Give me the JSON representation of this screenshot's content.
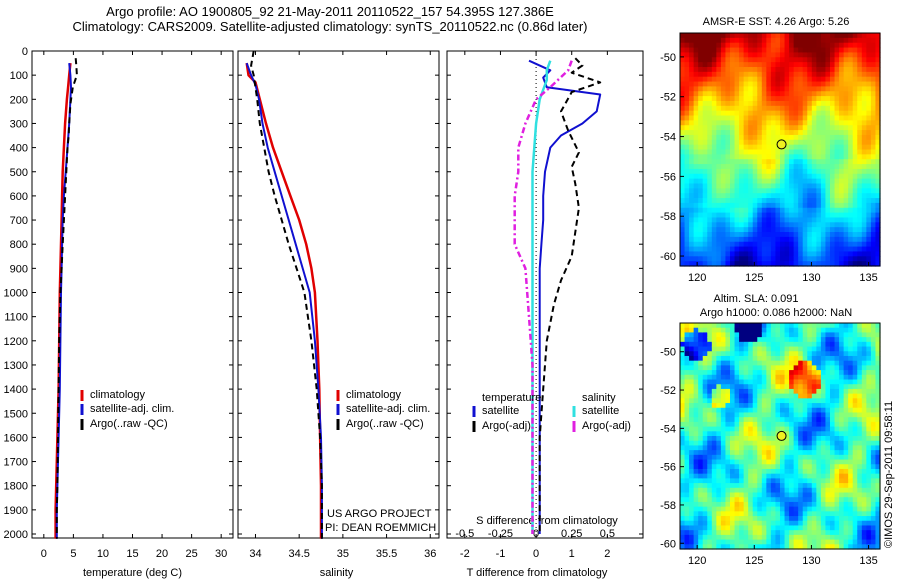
{
  "header": {
    "title_line1": "Argo profile: AO 1900805_92 21-May-2011 20110522_157 54.395S 127.386E",
    "title_line2": "Climatology: CARS2009. Satellite-adjusted climatology: synTS_20110522.nc (0.86d later)"
  },
  "credits": {
    "project": "US ARGO PROJECT",
    "pi": "PI: DEAN ROEMMICH",
    "stamp": "©IMOS 29-Sep-2011 09:58:11"
  },
  "colors": {
    "climatology": "#e00000",
    "satellite": "#1010d0",
    "argo": "#000000",
    "salinity_satellite": "#30e0e0",
    "salinity_argo": "#e020e0"
  },
  "chart_data": [
    {
      "type": "line",
      "xlabel": "temperature (deg C)",
      "ylabel": "",
      "xlim": [
        -2,
        32
      ],
      "ylim": [
        2050,
        0
      ],
      "xticks": [
        "0",
        "5",
        "10",
        "15",
        "20",
        "25",
        "30"
      ],
      "xtick_values": [
        0,
        5,
        10,
        15,
        20,
        25,
        30
      ],
      "yticks": [
        "0",
        "100",
        "200",
        "300",
        "400",
        "500",
        "600",
        "700",
        "800",
        "900",
        "1000",
        "1100",
        "1200",
        "1300",
        "1400",
        "1500",
        "1600",
        "1700",
        "1800",
        "1900",
        "2000"
      ],
      "ytick_values": [
        0,
        100,
        200,
        300,
        400,
        500,
        600,
        700,
        800,
        900,
        1000,
        1100,
        1200,
        1300,
        1400,
        1500,
        1600,
        1700,
        1800,
        1900,
        2000
      ],
      "legend": {
        "position": "center-right",
        "entries": [
          "climatology",
          "satellite-adj. clim.",
          "Argo(..raw -QC)"
        ]
      },
      "series": [
        {
          "name": "climatology",
          "dash": "solid",
          "x": [
            4.5,
            4.3,
            4.1,
            3.9,
            3.6,
            3.4,
            3.2,
            3.1,
            3.0,
            2.9,
            2.8,
            2.7,
            2.6,
            2.5,
            2.4,
            2.3,
            2.2,
            2.1,
            2.0,
            2.0
          ],
          "y": [
            50,
            100,
            150,
            200,
            300,
            400,
            500,
            600,
            700,
            800,
            900,
            1000,
            1200,
            1400,
            1500,
            1600,
            1700,
            1800,
            1900,
            2020
          ]
        },
        {
          "name": "satellite-adj. clim.",
          "dash": "solid",
          "x": [
            4.3,
            4.5,
            4.6,
            4.5,
            4.3,
            4.0,
            3.7,
            3.4,
            3.2,
            3.1,
            3.0,
            2.9,
            2.8,
            2.7,
            2.6,
            2.5,
            2.4,
            2.3,
            2.2,
            2.2
          ],
          "y": [
            50,
            100,
            150,
            200,
            300,
            400,
            500,
            600,
            700,
            800,
            900,
            1000,
            1200,
            1400,
            1500,
            1600,
            1700,
            1800,
            1900,
            2020
          ]
        },
        {
          "name": "Argo(..raw -QC)",
          "dash": "dashed",
          "x": [
            5.4,
            5.5,
            5.6,
            4.9,
            4.5,
            4.3,
            4.2,
            4.0,
            3.8,
            3.6,
            3.4,
            3.2,
            3.0,
            2.8,
            2.6,
            2.5,
            2.4,
            2.3,
            2.2,
            2.2
          ],
          "y": [
            30,
            60,
            100,
            150,
            220,
            300,
            350,
            400,
            500,
            600,
            700,
            800,
            900,
            1000,
            1200,
            1400,
            1600,
            1800,
            1900,
            2020
          ]
        }
      ]
    },
    {
      "type": "line",
      "xlabel": "salinity",
      "ylabel": "",
      "xlim": [
        33.8,
        36.1
      ],
      "ylim": [
        2050,
        0
      ],
      "xticks": [
        "34",
        "34.5",
        "35",
        "35.5",
        "36"
      ],
      "xtick_values": [
        34,
        34.5,
        35,
        35.5,
        36
      ],
      "legend": {
        "position": "center-right",
        "entries": [
          "climatology",
          "satellite-adj. clim.",
          "Argo(..raw -QC)"
        ]
      },
      "series": [
        {
          "name": "climatology",
          "dash": "solid",
          "x": [
            33.9,
            33.92,
            34.0,
            34.05,
            34.12,
            34.2,
            34.3,
            34.4,
            34.5,
            34.58,
            34.64,
            34.68,
            34.71,
            34.73,
            34.74,
            34.75,
            34.75
          ],
          "y": [
            50,
            100,
            130,
            200,
            300,
            400,
            500,
            600,
            700,
            800,
            900,
            1000,
            1200,
            1400,
            1600,
            1800,
            2020
          ]
        },
        {
          "name": "satellite-adj. clim.",
          "dash": "solid",
          "x": [
            33.9,
            33.95,
            34.0,
            34.04,
            34.08,
            34.14,
            34.22,
            34.3,
            34.38,
            34.46,
            34.54,
            34.62,
            34.68,
            34.72,
            34.75,
            34.76,
            34.76
          ],
          "y": [
            50,
            100,
            140,
            200,
            300,
            400,
            500,
            600,
            700,
            800,
            900,
            1000,
            1200,
            1400,
            1600,
            1800,
            2020
          ]
        },
        {
          "name": "Argo(..raw -QC)",
          "dash": "dashed",
          "x": [
            33.98,
            33.95,
            33.98,
            34.02,
            34.05,
            34.1,
            34.15,
            34.22,
            34.3,
            34.38,
            34.47,
            34.56,
            34.64,
            34.7,
            34.74,
            34.76,
            34.76
          ],
          "y": [
            0,
            60,
            100,
            200,
            300,
            400,
            500,
            600,
            700,
            800,
            900,
            1000,
            1200,
            1400,
            1600,
            1800,
            2020
          ]
        }
      ]
    },
    {
      "type": "line",
      "xlabel": "T difference from climatology",
      "subxlabel": "S difference from climatology",
      "ylabel": "",
      "xlim": [
        -2.5,
        3
      ],
      "ylim": [
        2050,
        0
      ],
      "xticks": [
        "-2",
        "-1",
        "0",
        "1",
        "2"
      ],
      "xtick_values": [
        -2,
        -1,
        0,
        1,
        2
      ],
      "sxticks": [
        "-0.5",
        "-0.25",
        "0",
        "0.25",
        "0.5"
      ],
      "sxtick_values": [
        -2,
        -1,
        0,
        1,
        2
      ],
      "legend": {
        "position": "lower-center",
        "group_temperature": "temperature",
        "group_salinity": "salinity",
        "entries_temperature": [
          "satellite",
          "Argo(-adj)"
        ],
        "entries_salinity": [
          "satellite",
          "Argo(-adj)"
        ]
      },
      "series": [
        {
          "name": "temperature satellite",
          "dash": "solid",
          "x": [
            -0.2,
            0.4,
            0.2,
            0.3,
            1.8,
            1.7,
            1.3,
            0.7,
            0.4,
            0.25,
            0.2,
            0.2,
            0.15,
            0.1,
            0.1,
            0.1,
            0.1,
            0.1,
            0.1,
            0.1
          ],
          "y": [
            40,
            80,
            110,
            150,
            180,
            250,
            300,
            350,
            400,
            500,
            600,
            700,
            800,
            900,
            1000,
            1200,
            1400,
            1600,
            1800,
            2000
          ]
        },
        {
          "name": "temperature Argo(-adj)",
          "dash": "dashed",
          "x": [
            1.1,
            1.3,
            1.0,
            1.8,
            1.0,
            0.7,
            0.9,
            1.2,
            1.0,
            1.1,
            1.2,
            1.1,
            1.0,
            0.7,
            0.5,
            0.3,
            0.2,
            0.1,
            0.1,
            0.1,
            0.1
          ],
          "y": [
            30,
            60,
            90,
            130,
            170,
            250,
            330,
            420,
            480,
            550,
            650,
            750,
            850,
            950,
            1050,
            1200,
            1400,
            1600,
            1750,
            1900,
            2000
          ]
        },
        {
          "name": "salinity satellite",
          "dash": "solid",
          "x": [
            0.4,
            0.3,
            0.3,
            0.1,
            0.0,
            -0.05,
            -0.1,
            -0.1,
            -0.1,
            -0.1,
            -0.1,
            -0.1,
            -0.1,
            -0.1,
            -0.1,
            -0.1
          ],
          "y": [
            40,
            80,
            120,
            200,
            300,
            400,
            500,
            600,
            700,
            900,
            1100,
            1300,
            1500,
            1700,
            1900,
            2000
          ]
        },
        {
          "name": "salinity Argo(-adj)",
          "dash": "dashdot",
          "x": [
            1.0,
            0.9,
            0.4,
            0.0,
            -0.3,
            -0.5,
            -0.5,
            -0.6,
            -0.6,
            -0.6,
            -0.3,
            -0.2,
            -0.1,
            -0.1,
            -0.1,
            -0.1,
            -0.1
          ],
          "y": [
            40,
            80,
            150,
            200,
            300,
            400,
            500,
            600,
            700,
            800,
            900,
            1100,
            1300,
            1500,
            1700,
            1850,
            2000
          ]
        }
      ]
    },
    {
      "type": "heatmap",
      "title": "AMSR-E SST: 4.26 Argo: 5.26",
      "xlim": [
        118.5,
        136
      ],
      "ylim": [
        -60.5,
        -48.8
      ],
      "xticks": [
        "120",
        "125",
        "130",
        "135"
      ],
      "xtick_values": [
        120,
        125,
        130,
        135
      ],
      "yticks": [
        "-50",
        "-52",
        "-54",
        "-56",
        "-58",
        "-60"
      ],
      "ytick_values": [
        -50,
        -52,
        -54,
        -56,
        -58,
        -60
      ],
      "marker": {
        "lon": 127.386,
        "lat": -54.395
      }
    },
    {
      "type": "heatmap",
      "title_line1": "Altim. SLA: 0.091",
      "title_line2": "Argo h1000: 0.086 h2000: NaN",
      "xlim": [
        118.5,
        136
      ],
      "ylim": [
        -60.3,
        -48.5
      ],
      "xticks": [
        "120",
        "125",
        "130",
        "135"
      ],
      "xtick_values": [
        120,
        125,
        130,
        135
      ],
      "yticks": [
        "-50",
        "-52",
        "-54",
        "-56",
        "-58",
        "-60"
      ],
      "ytick_values": [
        -50,
        -52,
        -54,
        -56,
        -58,
        -60
      ],
      "marker": {
        "lon": 127.386,
        "lat": -54.395
      }
    }
  ]
}
